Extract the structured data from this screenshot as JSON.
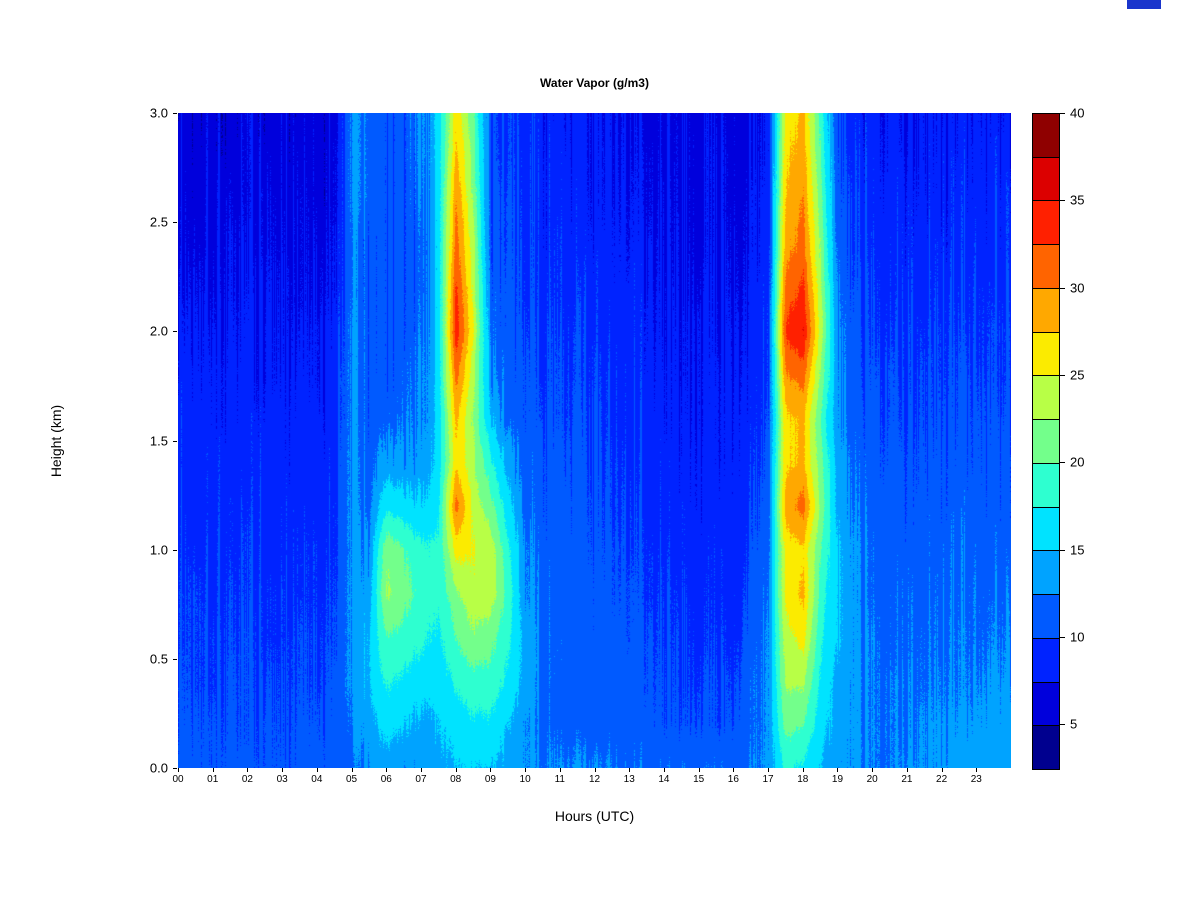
{
  "title": "Water Vapor (g/m3)",
  "x_axis": {
    "label": "Hours (UTC)",
    "ticks": [
      "00",
      "01",
      "02",
      "03",
      "04",
      "05",
      "06",
      "07",
      "08",
      "09",
      "10",
      "11",
      "12",
      "13",
      "14",
      "15",
      "16",
      "17",
      "18",
      "19",
      "20",
      "21",
      "22",
      "23"
    ],
    "range": [
      0,
      24
    ]
  },
  "y_axis": {
    "label": "Height (km)",
    "ticks": [
      "0.0",
      "0.5",
      "1.0",
      "1.5",
      "2.0",
      "2.5",
      "3.0"
    ],
    "range": [
      0,
      3
    ]
  },
  "colorbar": {
    "ticks": [
      5,
      10,
      15,
      20,
      25,
      30,
      35,
      40
    ],
    "min": 2.5,
    "max": 40
  },
  "decor": {
    "artifact_color": "#1A35CC"
  },
  "chart_data": {
    "type": "heatmap",
    "title": "Water Vapor (g/m3)",
    "xlabel": "Hours (UTC)",
    "ylabel": "Height (km)",
    "x_range": [
      0,
      24
    ],
    "y_range": [
      0,
      3
    ],
    "legend_position": "right-colorbar",
    "grid": false,
    "levels": [
      2.5,
      5,
      7.5,
      10,
      12.5,
      15,
      17.5,
      20,
      22.5,
      25,
      27.5,
      30,
      32.5,
      35,
      37.5,
      40
    ],
    "colors": [
      "#00008F",
      "#0000DC",
      "#0023FF",
      "#005AFF",
      "#00A3FF",
      "#00E3FF",
      "#2EFFD0",
      "#73FF8B",
      "#B8FF46",
      "#FBEB00",
      "#FFA800",
      "#FF6400",
      "#FF2000",
      "#DC0000",
      "#8F0000"
    ],
    "colorbar_ticks": [
      5,
      10,
      15,
      20,
      25,
      30,
      35,
      40
    ],
    "x": [
      0,
      0.5,
      1,
      1.5,
      2,
      2.5,
      3,
      3.5,
      4,
      4.5,
      5,
      5.5,
      6,
      6.5,
      7,
      7.5,
      8,
      8.5,
      9,
      9.5,
      10,
      10.5,
      11,
      11.5,
      12,
      12.5,
      13,
      13.5,
      14,
      14.5,
      15,
      15.5,
      16,
      16.5,
      17,
      17.5,
      18,
      18.5,
      19,
      19.5,
      20,
      20.5,
      21,
      21.5,
      22,
      22.5,
      23,
      23.5
    ],
    "y": [
      0,
      0.2,
      0.4,
      0.6,
      0.8,
      1,
      1.2,
      1.4,
      1.6,
      1.8,
      2,
      2.2,
      2.4,
      2.6,
      2.8,
      3
    ],
    "values_layout": "columns[i][j] = water vapor (g/m3) at hour x[i], height y[j], bottom-to-top",
    "columns": [
      [
        11,
        10.5,
        10.5,
        10,
        10,
        9.5,
        9.5,
        9,
        9,
        8.5,
        8,
        7.5,
        7,
        7,
        6.5,
        6.5
      ],
      [
        11,
        10.5,
        10,
        10,
        10,
        9.5,
        9,
        9,
        9,
        8.5,
        8,
        7.5,
        7,
        6.5,
        6.5,
        6
      ],
      [
        10.5,
        10.5,
        10,
        10,
        9.5,
        9.5,
        9,
        9,
        8.5,
        8.5,
        8,
        7.5,
        7,
        7,
        6.5,
        6.5
      ],
      [
        11,
        10.5,
        10.5,
        10,
        10,
        9.5,
        9.5,
        9,
        8.5,
        8.5,
        8,
        7.5,
        7.5,
        7,
        6.5,
        6
      ],
      [
        10.5,
        10,
        10,
        10,
        9.5,
        9.5,
        9,
        8.5,
        8.5,
        8,
        8,
        7.5,
        7,
        6.5,
        6.5,
        6.5
      ],
      [
        10.5,
        10.5,
        10,
        9.5,
        9.5,
        9,
        9,
        9,
        8.5,
        8,
        8,
        7.5,
        7,
        7,
        6.5,
        6
      ],
      [
        10.5,
        10,
        10,
        9.5,
        9.5,
        9,
        9,
        8.5,
        8.5,
        8,
        7.5,
        7.5,
        7,
        6.5,
        6.5,
        6.5
      ],
      [
        10.5,
        10.5,
        10,
        10,
        9.5,
        9.5,
        9,
        8.5,
        8.5,
        8,
        7.5,
        7,
        7,
        7,
        6.5,
        6
      ],
      [
        11,
        10.5,
        10,
        10,
        9.5,
        9.5,
        9,
        9,
        8.5,
        8,
        8,
        7.5,
        7,
        6.5,
        6.5,
        6.5
      ],
      [
        11,
        10.5,
        10.5,
        10,
        10,
        9.5,
        9.5,
        9,
        8.5,
        8.5,
        8,
        7.5,
        7.5,
        7,
        7,
        6.5
      ],
      [
        12,
        12.5,
        13,
        13,
        13,
        13,
        13,
        13,
        13,
        13,
        13,
        12.5,
        12.5,
        13,
        13,
        13
      ],
      [
        13,
        14,
        15,
        15,
        14,
        13,
        12,
        11.5,
        11,
        11,
        11,
        11,
        11,
        12,
        12,
        12
      ],
      [
        14,
        16,
        18,
        20,
        23,
        22,
        17,
        14,
        12,
        11,
        11,
        11,
        11,
        11,
        11,
        11
      ],
      [
        13,
        15,
        17,
        19,
        21,
        20,
        16,
        13,
        12,
        11.5,
        11,
        11,
        11,
        11,
        11,
        11
      ],
      [
        13,
        14,
        16,
        18,
        19,
        18,
        15,
        13,
        12,
        12,
        11.5,
        11,
        11,
        11.5,
        12,
        12
      ],
      [
        14,
        15,
        16,
        17,
        18,
        18,
        17,
        16,
        16,
        16,
        16,
        16,
        16,
        16,
        16,
        16
      ],
      [
        15,
        16,
        18,
        20,
        22,
        26,
        31,
        27,
        28,
        31,
        34,
        33,
        31,
        30,
        28,
        27
      ],
      [
        15,
        17,
        19,
        22,
        24,
        25,
        24,
        23,
        22,
        23,
        25,
        24,
        23,
        22,
        21,
        20
      ],
      [
        15,
        17,
        19,
        21,
        24,
        24,
        21,
        18,
        15,
        13,
        12,
        11.5,
        11,
        11,
        10.5,
        10
      ],
      [
        14,
        15,
        17,
        18,
        19,
        18,
        16,
        14,
        12,
        11.5,
        11,
        11,
        10.5,
        10.5,
        10,
        10
      ],
      [
        13,
        13,
        14,
        14,
        13,
        13,
        12,
        11.5,
        11,
        11,
        10.5,
        10,
        10,
        9.5,
        9.5,
        9
      ],
      [
        12.5,
        12,
        12,
        12,
        12,
        11.5,
        11,
        11,
        10.5,
        10,
        10,
        9.5,
        9,
        9,
        9,
        8.5
      ],
      [
        12.5,
        11.5,
        11.5,
        11.5,
        11,
        11,
        11,
        10.5,
        10,
        10,
        9.5,
        9,
        9,
        8.5,
        8.5,
        8
      ],
      [
        12.5,
        11.5,
        11,
        11,
        11,
        11,
        10.5,
        10.5,
        10,
        9.5,
        9.5,
        9,
        8.5,
        8.5,
        8,
        8
      ],
      [
        12.5,
        11,
        11,
        11,
        11,
        10.5,
        10.5,
        10,
        10,
        9.5,
        9,
        9,
        8.5,
        8,
        8,
        8
      ],
      [
        12.5,
        11.5,
        11,
        11,
        10.5,
        10.5,
        10,
        10,
        9.5,
        9.5,
        9,
        8.5,
        8.5,
        8,
        8,
        7.5
      ],
      [
        12,
        11,
        11,
        10.5,
        10.5,
        10,
        10,
        9.5,
        9,
        9,
        8.5,
        8.5,
        8,
        8,
        7.5,
        7.5
      ],
      [
        12,
        11,
        10.5,
        10.5,
        10,
        10,
        9.5,
        9,
        9,
        8.5,
        8.5,
        8,
        8,
        7.5,
        7.5,
        7
      ],
      [
        12,
        10.5,
        10.5,
        10,
        10,
        9.5,
        9,
        9,
        8.5,
        8.5,
        8,
        8,
        7.5,
        7.5,
        7,
        7
      ],
      [
        12,
        10.5,
        10,
        10,
        9.5,
        9,
        9,
        8.5,
        8.5,
        8,
        8,
        7.5,
        7.5,
        7,
        7,
        7
      ],
      [
        12,
        10.5,
        10,
        9.5,
        9.5,
        9,
        8.5,
        8.5,
        8,
        8,
        8,
        7.5,
        7,
        7,
        7,
        7
      ],
      [
        12,
        10,
        10,
        9.5,
        9,
        9,
        8.5,
        8,
        8,
        8,
        7.5,
        7.5,
        7,
        7,
        7,
        6.5
      ],
      [
        12,
        10.5,
        10,
        9.5,
        9.5,
        9,
        9,
        8.5,
        8.5,
        8,
        8,
        7.5,
        7.5,
        7,
        7,
        7
      ],
      [
        12.5,
        12,
        12,
        11.5,
        11,
        10.5,
        10,
        9.5,
        9,
        9,
        8.5,
        8.5,
        8,
        8,
        7.5,
        7.5
      ],
      [
        13,
        13,
        13,
        13,
        12.5,
        12,
        11.5,
        11,
        10.5,
        10,
        10,
        9.5,
        9,
        9,
        8.5,
        8.5
      ],
      [
        18,
        21,
        23,
        24,
        26,
        26,
        29,
        27,
        27,
        30,
        33,
        31,
        29,
        28,
        27,
        26
      ],
      [
        17,
        20,
        23,
        26,
        28,
        27,
        31,
        28,
        28,
        31,
        35,
        33,
        31,
        30,
        29,
        28
      ],
      [
        15,
        16,
        17,
        18,
        19,
        20,
        22,
        21,
        20,
        22,
        24,
        23,
        22,
        21,
        20,
        19
      ],
      [
        13,
        14,
        14,
        15,
        15,
        15,
        14,
        14,
        13,
        13,
        12.5,
        12,
        11.5,
        11,
        10.5,
        10
      ],
      [
        13,
        13,
        13,
        13,
        13,
        13,
        12.5,
        12,
        11.5,
        11,
        11,
        10.5,
        10,
        10,
        9.5,
        9
      ],
      [
        12.5,
        12.5,
        12.5,
        12.5,
        12,
        12,
        11.5,
        11,
        11,
        10.5,
        10,
        10,
        9.5,
        9,
        9,
        8.5
      ],
      [
        12.5,
        12.5,
        12.5,
        12,
        12,
        11.5,
        11.5,
        11,
        10.5,
        10.5,
        10,
        9.5,
        9.5,
        9,
        8.5,
        8.5
      ],
      [
        13,
        12.5,
        12.5,
        12,
        12,
        11.5,
        11,
        11,
        10.5,
        10,
        10,
        9.5,
        9,
        9,
        8.5,
        8
      ],
      [
        13,
        13,
        12.5,
        12.5,
        12,
        11.5,
        11.5,
        11,
        10.5,
        10.5,
        10,
        9.5,
        9.5,
        9,
        8.5,
        8.5
      ],
      [
        13,
        13,
        12.5,
        12,
        12,
        11.5,
        11,
        11,
        10.5,
        10,
        10,
        9.5,
        9,
        8.5,
        8.5,
        8
      ],
      [
        13.5,
        13,
        12.5,
        12.5,
        12,
        12,
        11.5,
        11,
        10.5,
        10.5,
        10,
        9.5,
        9,
        9,
        8.5,
        8
      ],
      [
        14,
        13,
        12.5,
        12,
        12,
        11.5,
        11,
        10.5,
        10.5,
        10,
        9.5,
        9.5,
        9,
        8.5,
        8.5,
        8
      ],
      [
        14,
        13.5,
        13,
        12.5,
        12,
        11.5,
        11,
        11,
        10.5,
        10,
        10,
        9.5,
        9,
        9,
        8.5,
        8
      ]
    ]
  }
}
